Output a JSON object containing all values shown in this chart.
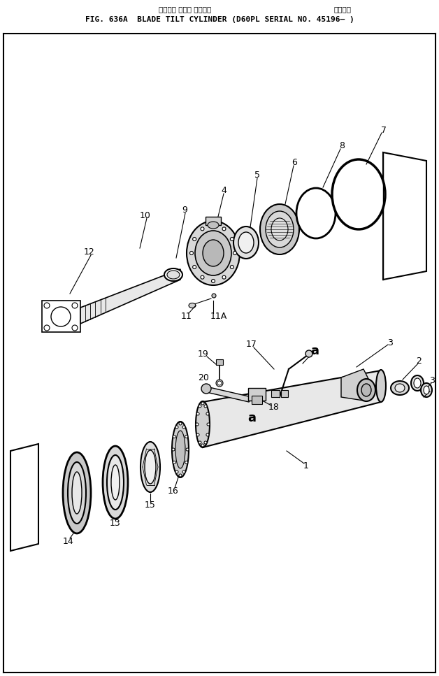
{
  "title_jp": "ブレード チルト シリンダ",
  "title_jp2": "適用号機",
  "title_en": "FIG. 636A  BLADE TILT CYLINDER (D60PL SERIAL NO. 45196— )",
  "bg_color": "#ffffff",
  "line_color": "#000000",
  "fig_width": 6.28,
  "fig_height": 9.67,
  "dpi": 100
}
